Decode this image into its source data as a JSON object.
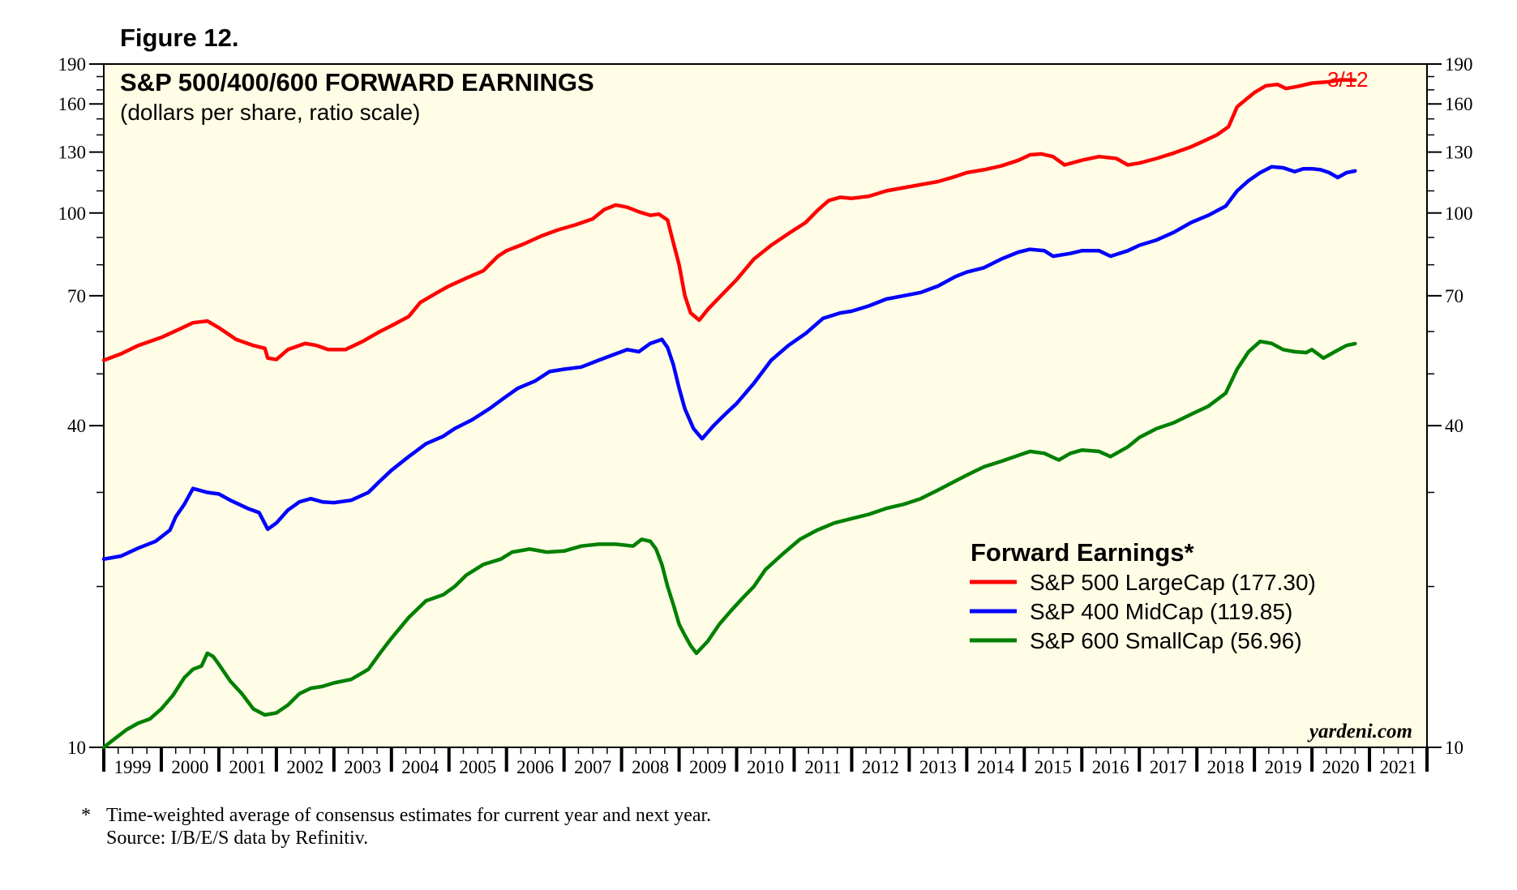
{
  "figure_label": "Figure 12.",
  "footnote": {
    "marker": "*",
    "line1": "Time-weighted average of consensus estimates for current year and next year.",
    "line2": "Source: I/B/E/S data by Refinitiv."
  },
  "source_text": "yardeni.com",
  "colors": {
    "plot_background": "#fffde6",
    "sp500": "#ff0000",
    "sp400": "#0000ff",
    "sp600": "#008000"
  },
  "chart_data": {
    "type": "line",
    "title": "S&P 500/400/600 FORWARD EARNINGS",
    "subtitle": "(dollars per share, ratio scale)",
    "y_scale": "log",
    "ylim": [
      10,
      190
    ],
    "y_ticks": [
      10,
      40,
      70,
      100,
      130,
      160,
      190
    ],
    "xlim": [
      1999,
      2022
    ],
    "x_tick_labels": [
      "1999",
      "2000",
      "2001",
      "2002",
      "2003",
      "2004",
      "2005",
      "2006",
      "2007",
      "2008",
      "2009",
      "2010",
      "2011",
      "2012",
      "2013",
      "2014",
      "2015",
      "2016",
      "2017",
      "2018",
      "2019",
      "2020",
      "2021"
    ],
    "end_annotation": "3/12",
    "legend": {
      "title": "Forward Earnings*",
      "entries": [
        "S&P 500 LargeCap (177.30)",
        "S&P 400 MidCap (119.85)",
        "S&P 600 SmallCap (56.96)"
      ]
    },
    "series": [
      {
        "name": "S&P 500 LargeCap",
        "last_value": 177.3,
        "points": [
          [
            1999.0,
            53.0
          ],
          [
            1999.3,
            54.5
          ],
          [
            1999.6,
            56.5
          ],
          [
            2000.0,
            58.5
          ],
          [
            2000.3,
            60.5
          ],
          [
            2000.55,
            62.3
          ],
          [
            2000.8,
            62.8
          ],
          [
            2001.0,
            61.0
          ],
          [
            2001.3,
            58.0
          ],
          [
            2001.6,
            56.5
          ],
          [
            2001.8,
            55.8
          ],
          [
            2001.85,
            53.5
          ],
          [
            2002.0,
            53.2
          ],
          [
            2002.2,
            55.5
          ],
          [
            2002.5,
            57.0
          ],
          [
            2002.7,
            56.5
          ],
          [
            2002.9,
            55.5
          ],
          [
            2003.2,
            55.5
          ],
          [
            2003.5,
            57.5
          ],
          [
            2003.8,
            60.0
          ],
          [
            2004.0,
            61.5
          ],
          [
            2004.3,
            64.0
          ],
          [
            2004.5,
            68.0
          ],
          [
            2004.8,
            71.0
          ],
          [
            2005.0,
            73.0
          ],
          [
            2005.3,
            75.5
          ],
          [
            2005.6,
            78.0
          ],
          [
            2005.85,
            83.0
          ],
          [
            2006.0,
            85.0
          ],
          [
            2006.3,
            87.5
          ],
          [
            2006.6,
            90.5
          ],
          [
            2006.9,
            93.0
          ],
          [
            2007.2,
            95.0
          ],
          [
            2007.5,
            97.5
          ],
          [
            2007.7,
            101.5
          ],
          [
            2007.9,
            103.5
          ],
          [
            2008.1,
            102.5
          ],
          [
            2008.3,
            100.5
          ],
          [
            2008.5,
            99.0
          ],
          [
            2008.65,
            99.5
          ],
          [
            2008.8,
            97.0
          ],
          [
            2008.9,
            88.0
          ],
          [
            2009.0,
            80.0
          ],
          [
            2009.1,
            70.0
          ],
          [
            2009.2,
            65.0
          ],
          [
            2009.35,
            63.0
          ],
          [
            2009.5,
            66.0
          ],
          [
            2009.7,
            69.5
          ],
          [
            2010.0,
            75.0
          ],
          [
            2010.3,
            82.0
          ],
          [
            2010.6,
            87.0
          ],
          [
            2010.9,
            91.5
          ],
          [
            2011.2,
            96.0
          ],
          [
            2011.4,
            101.0
          ],
          [
            2011.6,
            105.5
          ],
          [
            2011.8,
            107.0
          ],
          [
            2012.0,
            106.5
          ],
          [
            2012.3,
            107.5
          ],
          [
            2012.6,
            110.0
          ],
          [
            2012.9,
            111.5
          ],
          [
            2013.2,
            113.0
          ],
          [
            2013.5,
            114.5
          ],
          [
            2013.8,
            117.0
          ],
          [
            2014.0,
            119.0
          ],
          [
            2014.3,
            120.5
          ],
          [
            2014.6,
            122.5
          ],
          [
            2014.9,
            125.5
          ],
          [
            2015.1,
            128.5
          ],
          [
            2015.3,
            129.0
          ],
          [
            2015.5,
            127.5
          ],
          [
            2015.7,
            123.0
          ],
          [
            2016.0,
            125.5
          ],
          [
            2016.3,
            127.5
          ],
          [
            2016.6,
            126.5
          ],
          [
            2016.8,
            123.0
          ],
          [
            2017.0,
            124.0
          ],
          [
            2017.3,
            126.5
          ],
          [
            2017.6,
            129.5
          ],
          [
            2017.9,
            133.0
          ],
          [
            2018.1,
            136.0
          ],
          [
            2018.35,
            140.0
          ],
          [
            2018.55,
            145.0
          ],
          [
            2018.7,
            158.0
          ],
          [
            2018.85,
            163.0
          ],
          [
            2019.0,
            168.0
          ],
          [
            2019.2,
            173.0
          ],
          [
            2019.4,
            174.0
          ],
          [
            2019.55,
            171.0
          ],
          [
            2019.75,
            172.5
          ],
          [
            2020.0,
            175.0
          ],
          [
            2020.3,
            176.0
          ],
          [
            2020.5,
            177.5
          ],
          [
            2020.75,
            177.3
          ]
        ]
      },
      {
        "name": "S&P 400 MidCap",
        "last_value": 119.85,
        "points": [
          [
            1999.0,
            22.5
          ],
          [
            1999.3,
            22.8
          ],
          [
            1999.6,
            23.6
          ],
          [
            1999.9,
            24.3
          ],
          [
            2000.15,
            25.5
          ],
          [
            2000.25,
            27.0
          ],
          [
            2000.4,
            28.5
          ],
          [
            2000.55,
            30.5
          ],
          [
            2000.8,
            30.0
          ],
          [
            2001.0,
            29.8
          ],
          [
            2001.2,
            29.0
          ],
          [
            2001.5,
            28.0
          ],
          [
            2001.7,
            27.5
          ],
          [
            2001.85,
            25.6
          ],
          [
            2002.0,
            26.3
          ],
          [
            2002.2,
            27.8
          ],
          [
            2002.4,
            28.8
          ],
          [
            2002.6,
            29.2
          ],
          [
            2002.8,
            28.8
          ],
          [
            2003.0,
            28.7
          ],
          [
            2003.3,
            29.0
          ],
          [
            2003.6,
            30.0
          ],
          [
            2003.8,
            31.5
          ],
          [
            2004.0,
            33.0
          ],
          [
            2004.3,
            35.0
          ],
          [
            2004.6,
            37.0
          ],
          [
            2004.9,
            38.2
          ],
          [
            2005.1,
            39.5
          ],
          [
            2005.4,
            41.0
          ],
          [
            2005.7,
            43.0
          ],
          [
            2005.95,
            45.0
          ],
          [
            2006.2,
            47.0
          ],
          [
            2006.5,
            48.5
          ],
          [
            2006.75,
            50.5
          ],
          [
            2007.0,
            51.0
          ],
          [
            2007.3,
            51.5
          ],
          [
            2007.6,
            53.0
          ],
          [
            2007.9,
            54.5
          ],
          [
            2008.1,
            55.5
          ],
          [
            2008.3,
            55.0
          ],
          [
            2008.5,
            57.0
          ],
          [
            2008.7,
            58.0
          ],
          [
            2008.8,
            56.0
          ],
          [
            2008.9,
            52.0
          ],
          [
            2009.0,
            47.0
          ],
          [
            2009.1,
            43.0
          ],
          [
            2009.25,
            39.5
          ],
          [
            2009.4,
            37.8
          ],
          [
            2009.6,
            40.0
          ],
          [
            2009.8,
            42.0
          ],
          [
            2010.0,
            44.0
          ],
          [
            2010.3,
            48.0
          ],
          [
            2010.6,
            53.0
          ],
          [
            2010.9,
            56.5
          ],
          [
            2011.2,
            59.5
          ],
          [
            2011.5,
            63.5
          ],
          [
            2011.8,
            65.0
          ],
          [
            2012.0,
            65.5
          ],
          [
            2012.3,
            67.0
          ],
          [
            2012.6,
            69.0
          ],
          [
            2012.9,
            70.0
          ],
          [
            2013.2,
            71.0
          ],
          [
            2013.5,
            73.0
          ],
          [
            2013.8,
            76.0
          ],
          [
            2014.0,
            77.5
          ],
          [
            2014.3,
            79.0
          ],
          [
            2014.6,
            82.0
          ],
          [
            2014.9,
            84.5
          ],
          [
            2015.1,
            85.5
          ],
          [
            2015.35,
            85.0
          ],
          [
            2015.5,
            83.0
          ],
          [
            2015.8,
            84.0
          ],
          [
            2016.0,
            85.0
          ],
          [
            2016.3,
            85.0
          ],
          [
            2016.5,
            83.0
          ],
          [
            2016.8,
            85.0
          ],
          [
            2017.0,
            87.0
          ],
          [
            2017.3,
            89.0
          ],
          [
            2017.6,
            92.0
          ],
          [
            2017.9,
            96.0
          ],
          [
            2018.2,
            99.0
          ],
          [
            2018.5,
            103.0
          ],
          [
            2018.7,
            110.0
          ],
          [
            2018.9,
            115.0
          ],
          [
            2019.1,
            119.0
          ],
          [
            2019.3,
            122.0
          ],
          [
            2019.5,
            121.5
          ],
          [
            2019.7,
            119.5
          ],
          [
            2019.85,
            121.0
          ],
          [
            2020.0,
            121.0
          ],
          [
            2020.15,
            120.5
          ],
          [
            2020.3,
            119.0
          ],
          [
            2020.45,
            116.5
          ],
          [
            2020.6,
            119.0
          ],
          [
            2020.75,
            119.85
          ]
        ]
      },
      {
        "name": "S&P 600 SmallCap",
        "last_value": 56.96,
        "points": [
          [
            1999.0,
            10.0
          ],
          [
            1999.2,
            10.4
          ],
          [
            1999.4,
            10.8
          ],
          [
            1999.6,
            11.1
          ],
          [
            1999.8,
            11.3
          ],
          [
            2000.0,
            11.8
          ],
          [
            2000.2,
            12.5
          ],
          [
            2000.4,
            13.5
          ],
          [
            2000.55,
            14.0
          ],
          [
            2000.7,
            14.2
          ],
          [
            2000.8,
            15.0
          ],
          [
            2000.9,
            14.8
          ],
          [
            2001.0,
            14.3
          ],
          [
            2001.2,
            13.3
          ],
          [
            2001.4,
            12.6
          ],
          [
            2001.6,
            11.8
          ],
          [
            2001.8,
            11.5
          ],
          [
            2002.0,
            11.6
          ],
          [
            2002.2,
            12.0
          ],
          [
            2002.4,
            12.6
          ],
          [
            2002.6,
            12.9
          ],
          [
            2002.8,
            13.0
          ],
          [
            2003.0,
            13.2
          ],
          [
            2003.3,
            13.4
          ],
          [
            2003.6,
            14.0
          ],
          [
            2003.8,
            15.0
          ],
          [
            2004.0,
            16.0
          ],
          [
            2004.3,
            17.5
          ],
          [
            2004.6,
            18.8
          ],
          [
            2004.9,
            19.3
          ],
          [
            2005.1,
            20.0
          ],
          [
            2005.3,
            21.0
          ],
          [
            2005.6,
            22.0
          ],
          [
            2005.9,
            22.5
          ],
          [
            2006.1,
            23.2
          ],
          [
            2006.4,
            23.5
          ],
          [
            2006.7,
            23.2
          ],
          [
            2007.0,
            23.3
          ],
          [
            2007.3,
            23.8
          ],
          [
            2007.6,
            24.0
          ],
          [
            2007.9,
            24.0
          ],
          [
            2008.2,
            23.8
          ],
          [
            2008.35,
            24.5
          ],
          [
            2008.5,
            24.3
          ],
          [
            2008.6,
            23.5
          ],
          [
            2008.7,
            22.0
          ],
          [
            2008.8,
            20.0
          ],
          [
            2008.9,
            18.5
          ],
          [
            2009.0,
            17.0
          ],
          [
            2009.1,
            16.2
          ],
          [
            2009.2,
            15.5
          ],
          [
            2009.3,
            15.0
          ],
          [
            2009.5,
            15.8
          ],
          [
            2009.7,
            17.0
          ],
          [
            2009.9,
            18.0
          ],
          [
            2010.1,
            19.0
          ],
          [
            2010.3,
            20.0
          ],
          [
            2010.5,
            21.5
          ],
          [
            2010.8,
            23.0
          ],
          [
            2011.1,
            24.5
          ],
          [
            2011.4,
            25.5
          ],
          [
            2011.7,
            26.3
          ],
          [
            2012.0,
            26.8
          ],
          [
            2012.3,
            27.3
          ],
          [
            2012.6,
            28.0
          ],
          [
            2012.9,
            28.5
          ],
          [
            2013.2,
            29.2
          ],
          [
            2013.5,
            30.3
          ],
          [
            2013.8,
            31.5
          ],
          [
            2014.0,
            32.3
          ],
          [
            2014.3,
            33.5
          ],
          [
            2014.6,
            34.3
          ],
          [
            2014.9,
            35.2
          ],
          [
            2015.1,
            35.8
          ],
          [
            2015.35,
            35.5
          ],
          [
            2015.6,
            34.5
          ],
          [
            2015.8,
            35.5
          ],
          [
            2016.0,
            36.0
          ],
          [
            2016.3,
            35.8
          ],
          [
            2016.5,
            35.0
          ],
          [
            2016.8,
            36.5
          ],
          [
            2017.0,
            38.0
          ],
          [
            2017.3,
            39.5
          ],
          [
            2017.6,
            40.5
          ],
          [
            2017.9,
            42.0
          ],
          [
            2018.2,
            43.5
          ],
          [
            2018.5,
            46.0
          ],
          [
            2018.7,
            51.0
          ],
          [
            2018.9,
            55.0
          ],
          [
            2019.1,
            57.5
          ],
          [
            2019.3,
            57.0
          ],
          [
            2019.5,
            55.5
          ],
          [
            2019.7,
            55.0
          ],
          [
            2019.9,
            54.8
          ],
          [
            2020.0,
            55.5
          ],
          [
            2020.2,
            53.5
          ],
          [
            2020.4,
            55.0
          ],
          [
            2020.6,
            56.5
          ],
          [
            2020.75,
            56.96
          ]
        ]
      }
    ]
  }
}
